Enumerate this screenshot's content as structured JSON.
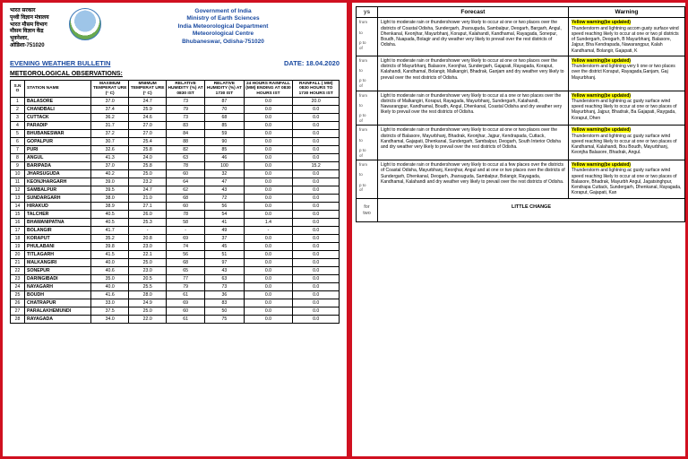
{
  "header": {
    "hindi_lines": "भारत सरकार\nपृथ्वी विज्ञान मंत्रालय\nभारत मौसम विभाग\nमौसम विज्ञान केंद्र\nभुवनेश्वर, ओडिशा-751020",
    "gov": "Government of India\nMinistry of Earth Sciences\nIndia Meteorological Department\nMeteorological Centre\nBhubaneswar, Odisha-751020",
    "title": "EVENING WEATHER BULLETIN",
    "date": "DATE: 18.04.2020",
    "section": "METEOROLOGICAL OBSERVATIONS:"
  },
  "cols": [
    "S.N O",
    "STATION NAME",
    "MAXIMUM TEMPERAT URE (° C)",
    "MNIMUM TEMPERAT URE (° C)",
    "RELATIVE HUMIDITY (%) AT 0830 IST",
    "RELATIVE HUMIDITY (%) AT 1730 IST",
    "24 HOURS RAINFALL (MM) ENDING AT 0830 HOURS IST",
    "RAINFALL ( MM) 0830 HOURS TO 1730 HOURS IST"
  ],
  "rows": [
    [
      "1",
      "BALASORE",
      "37.0",
      "24.7",
      "73",
      "87",
      "0.0",
      "20.0"
    ],
    [
      "2",
      "CHANDBALI",
      "37.4",
      "25.9",
      "79",
      "70",
      "0.0",
      "0.0"
    ],
    [
      "3",
      "CUTTACK",
      "36.2",
      "24.6",
      "73",
      "68",
      "0.0",
      "0.0"
    ],
    [
      "4",
      "PARADIP",
      "31.7",
      "27.0",
      "83",
      "85",
      "0.0",
      "0.0"
    ],
    [
      "5",
      "BHUBANESWAR",
      "37.2",
      "27.0",
      "84",
      "59",
      "0.0",
      "0.0"
    ],
    [
      "6",
      "GOPALPUR",
      "30.7",
      "25.4",
      "88",
      "90",
      "0.0",
      "0.0"
    ],
    [
      "7",
      "PURI",
      "32.6",
      "25.8",
      "82",
      "85",
      "0.0",
      "0.0"
    ],
    [
      "8",
      "ANGUL",
      "41.3",
      "24.0",
      "63",
      "46",
      "0.0",
      "0.0"
    ],
    [
      "9",
      "BARIPADA",
      "37.0",
      "25.8",
      "78",
      "100",
      "0.0",
      "15.2"
    ],
    [
      "10",
      "JHARSUGUDA",
      "40.2",
      "25.0",
      "60",
      "32",
      "0.0",
      "0.0"
    ],
    [
      "11",
      "KEONJHARGARH",
      "39.0",
      "23.2",
      "64",
      "47",
      "0.0",
      "0.0"
    ],
    [
      "12",
      "SAMBALPUR",
      "39.5",
      "24.7",
      "62",
      "43",
      "0.0",
      "0.0"
    ],
    [
      "13",
      "SUNDARGARH",
      "38.0",
      "21.0",
      "68",
      "72",
      "0.0",
      "0.0"
    ],
    [
      "14",
      "HIRAKUD",
      "38.9",
      "27.1",
      "60",
      "56",
      "0.0",
      "0.0"
    ],
    [
      "15",
      "TALCHER",
      "40.5",
      "26.0",
      "78",
      "54",
      "0.0",
      "0.0"
    ],
    [
      "16",
      "BHAWANIPATNA",
      "40.5",
      "25.3",
      "58",
      "41",
      "1.4",
      "0.0"
    ],
    [
      "17",
      "BOLANGIR",
      "41.7",
      "-",
      "-",
      "49",
      "-",
      "0.0"
    ],
    [
      "18",
      "KORAPUT",
      "35.2",
      "20.8",
      "69",
      "37",
      "0.0",
      "0.0"
    ],
    [
      "19",
      "PHULABANI",
      "39.8",
      "23.0",
      "74",
      "45",
      "0.0",
      "0.0"
    ],
    [
      "20",
      "TITLAGARH",
      "41.5",
      "22.1",
      "56",
      "51",
      "0.0",
      "0.0"
    ],
    [
      "21",
      "MALKANGIRI",
      "40.0",
      "25.0",
      "68",
      "97",
      "0.0",
      "0.0"
    ],
    [
      "22",
      "SONEPUR",
      "40.6",
      "23.0",
      "65",
      "43",
      "0.0",
      "0.0"
    ],
    [
      "23",
      "DARINGIBADI",
      "35.0",
      "20.5",
      "77",
      "63",
      "0.0",
      "0.0"
    ],
    [
      "24",
      "NAYAGARH",
      "40.0",
      "25.5",
      "79",
      "73",
      "0.0",
      "0.0"
    ],
    [
      "25",
      "BOUDH",
      "41.6",
      "28.0",
      "61",
      "36",
      "0.0",
      "0.0"
    ],
    [
      "26",
      "CHATRAPUR",
      "33.0",
      "24.9",
      "69",
      "83",
      "0.0",
      "0.0"
    ],
    [
      "27",
      "PARALAKHEMUNDI",
      "37.5",
      "25.0",
      "60",
      "50",
      "0.0",
      "0.0"
    ],
    [
      "28",
      "RAYAGADA",
      "34.0",
      "22.0",
      "61",
      "75",
      "0.0",
      "0.0"
    ]
  ],
  "rcols": [
    "ys",
    "Forecast",
    "Warning"
  ],
  "rwarn": "Yellow warning(be updated)",
  "rrows": [
    {
      "d": "from\n\nto\n\np to\nof",
      "f": "Light to moderate rain or thundershower very likely to occur at one or two places over the districts of Coastal Odisha, Sundergarh, Jharsuguda, Sambalpur, Deogarh, Bargarh, Angul, Dhenkanal, Keonjhar, Mayurbhanj, Koraput, Kalahandi, Kandhamal, Rayagada, Sonepur, Boudh, Nuapada, Bolagir and dry weather very likely to prevail over the rest districts of Odisha.",
      "w": "Thunderstorm and lightning accom gusty surface wind speed reaching likely to occur at one or two pl districts of Sundergarh, Deogarh, B Mayurbhanj, Balasore, Jajpur, Bha Kendrapada, Nawarangpur, Kalah Kandhamal, Bolangir, Gajapati, K"
    },
    {
      "d": "from\n\nto\n\np to\nof",
      "f": "Light to moderate rain or thundershower very likely to occur at one or two places over the districts of Mayurbhanj, Balasore, Keonjhar, Sundergarh, Gajapati, Rayagada, Koraput, Kalahandi, Kandhamal, Bolangir, Malkangiri, Bhadrak, Ganjam and dry weather very likely to prevail over the rest districts of Odisha.",
      "w": "Thunderstorm and lightning very li one or two places over the district Koraput, Rayagada,Ganjam, Gaj Mayurbhanj."
    },
    {
      "d": "from\n\nto\n\np to\nof",
      "f": "Light to moderate rain or thundershower very likely to occur at a one or two places over the districts of Malkangiri, Koraput, Rayagada, Mayurbhanj, Sundergarh, Kalahandi, Nawarangpur, Kandhamal, Boudh, Angul, Dhenkanal, Coastal Odisha and dry weather very likely to prevail over the rest districts of Odisha.",
      "w": "Thunderstorm and lightning ac gusty surface wind speed reaching likely to occur at one or two places of Mayurbhanj, Jajpur, Bhadrak, Ba Gajapati, Raygada, Koraput, Dhen"
    },
    {
      "d": "from\n\nto\n\np to\nof",
      "f": "Light to moderate rain or thundershower very likely to occur at one or two places over the districts of Balasore, Mayurbhanj, Bhadrak, Keonjhar, Jajpur, Kendrapada, Cuttack, Kandhamal, Gajapati, Dhenkanal, Sundergarh, Sambalpur, Deogarh, South Interior Odisha and dry weather very likely to prevail over the rest districts of Odisha.",
      "w": "Thunderstorm and lightning ac gusty surface wind speed reaching likely to occur at one or two places of Kandhamal, Kalahandi, Bou Boudh, Mayurbhanj, Keonjha Balasore, Bhadrak, Angul."
    },
    {
      "d": "from\n\nto\n\np to\nof",
      "f": "Light to moderate rain or thundershower very likely to occur at a few places over the districts of Coastal Odisha, Mayurbhanj, Keonjhar, Angul and at one or two places over the districts of Sundergarh, Dhenkanal, Deogarh, Jharsuguda, Sambalpur, Bolangir, Rayagada, Kandhamal, Kalahandi and dry weather very likely to prevail over the rest districts of Odisha.",
      "w": "Thunderstorm and lightning ac gusty surface wind speed reaching likely to occur at one or two places of Balasore, Bhadrak, Mayurbh Angul, Jagatsinghpur, Kendrapa Cuttack, Sundergarh, Dhenkanal, Rayagada, Koraput, Gajapati, Kan"
    }
  ],
  "outlook": {
    "d": "for\ntwo",
    "text": "LITTLE CHANGE"
  }
}
